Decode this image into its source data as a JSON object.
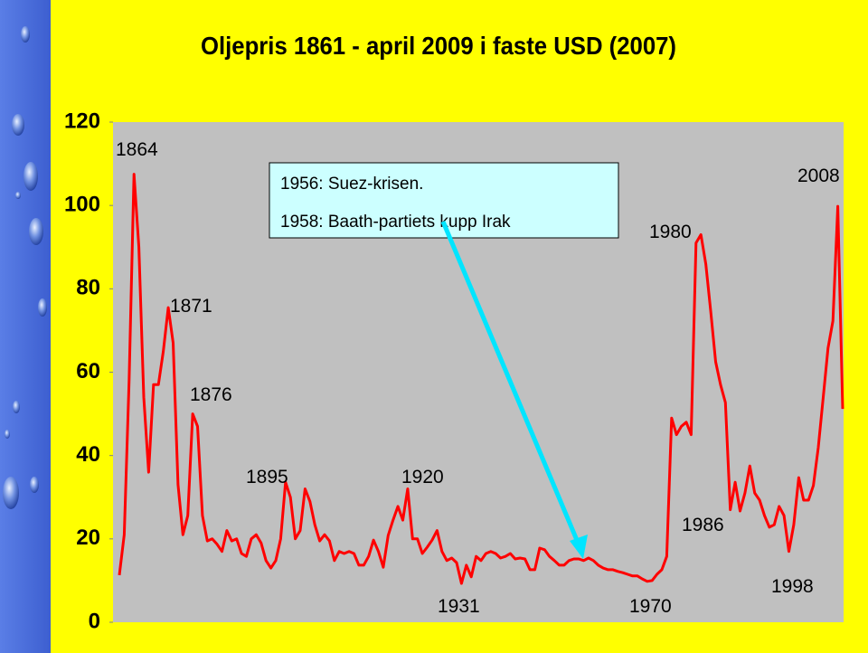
{
  "chart_data": {
    "type": "line",
    "title": "Oljepris 1861 - april 2009 i faste USD (2007)",
    "xlim": [
      1861,
      2009
    ],
    "ylim": [
      0,
      120
    ],
    "yticks": [
      0,
      20,
      40,
      60,
      80,
      100,
      120
    ],
    "grid": false,
    "x": [
      1861,
      1862,
      1863,
      1864,
      1865,
      1866,
      1867,
      1868,
      1869,
      1870,
      1871,
      1872,
      1873,
      1874,
      1875,
      1876,
      1877,
      1878,
      1879,
      1880,
      1881,
      1882,
      1883,
      1884,
      1885,
      1886,
      1887,
      1888,
      1889,
      1890,
      1891,
      1892,
      1893,
      1894,
      1895,
      1896,
      1897,
      1898,
      1899,
      1900,
      1901,
      1902,
      1903,
      1904,
      1905,
      1906,
      1907,
      1908,
      1909,
      1910,
      1911,
      1912,
      1913,
      1914,
      1915,
      1916,
      1917,
      1918,
      1919,
      1920,
      1921,
      1922,
      1923,
      1924,
      1925,
      1926,
      1927,
      1928,
      1929,
      1930,
      1931,
      1932,
      1933,
      1934,
      1935,
      1936,
      1937,
      1938,
      1939,
      1940,
      1941,
      1942,
      1943,
      1944,
      1945,
      1946,
      1947,
      1948,
      1949,
      1950,
      1951,
      1952,
      1953,
      1954,
      1955,
      1956,
      1957,
      1958,
      1959,
      1960,
      1961,
      1962,
      1963,
      1964,
      1965,
      1966,
      1967,
      1968,
      1969,
      1970,
      1971,
      1972,
      1973,
      1974,
      1975,
      1976,
      1977,
      1978,
      1979,
      1980,
      1981,
      1982,
      1983,
      1984,
      1985,
      1986,
      1987,
      1988,
      1989,
      1990,
      1991,
      1992,
      1993,
      1994,
      1995,
      1996,
      1997,
      1998,
      1999,
      2000,
      2001,
      2002,
      2003,
      2004,
      2005,
      2006,
      2007,
      2008,
      2009
    ],
    "series": [
      {
        "color": "#ff0000",
        "values": [
          11.3,
          21,
          58,
          107.5,
          90,
          54,
          36,
          57,
          57,
          65,
          75.5,
          67,
          33,
          21,
          25.6,
          50,
          47,
          25.6,
          19.5,
          20,
          18.7,
          17,
          22,
          19.5,
          20,
          16.5,
          15.8,
          20,
          21,
          19,
          14.8,
          13,
          14.8,
          20,
          33.6,
          30,
          20,
          22,
          32,
          29,
          23.4,
          19.5,
          21,
          19.5,
          14.8,
          17,
          16.5,
          17,
          16.5,
          13.7,
          13.7,
          15.8,
          19.7,
          17,
          13.2,
          20.8,
          24.5,
          27.8,
          24.5,
          32,
          20,
          20,
          16.5,
          18,
          19.7,
          22,
          17,
          14.8,
          15.4,
          14.3,
          9.3,
          13.7,
          10.9,
          15.8,
          14.8,
          16.5,
          17,
          16.5,
          15.4,
          15.8,
          16.5,
          15.2,
          15.4,
          15.2,
          12.6,
          12.6,
          17.8,
          17.4,
          15.8,
          14.8,
          13.7,
          13.7,
          14.8,
          15.2,
          15.2,
          14.8,
          15.4,
          14.8,
          13.7,
          13,
          12.6,
          12.6,
          12.2,
          11.9,
          11.5,
          11.1,
          11.1,
          10.4,
          9.8,
          10,
          11.5,
          12.6,
          15.8,
          49,
          45,
          47,
          48,
          45,
          91,
          93,
          86,
          74.5,
          62.5,
          57,
          52.7,
          27,
          33.6,
          26.7,
          31,
          37.5,
          31,
          29.3,
          25.6,
          22.8,
          23.4,
          27.8,
          25.6,
          17,
          23.4,
          34.7,
          29.3,
          29.3,
          32.8,
          41.9,
          53.8,
          65.8,
          72.3,
          99.8,
          51.2
        ]
      }
    ],
    "annotations": [
      "1864",
      "1871",
      "1876",
      "1895",
      "1920",
      "1931",
      "1970",
      "1980",
      "1986",
      "1998",
      "2008"
    ],
    "note_lines": [
      "1956: Suez-krisen.",
      "1958: Baath-partiets kupp Irak"
    ]
  }
}
